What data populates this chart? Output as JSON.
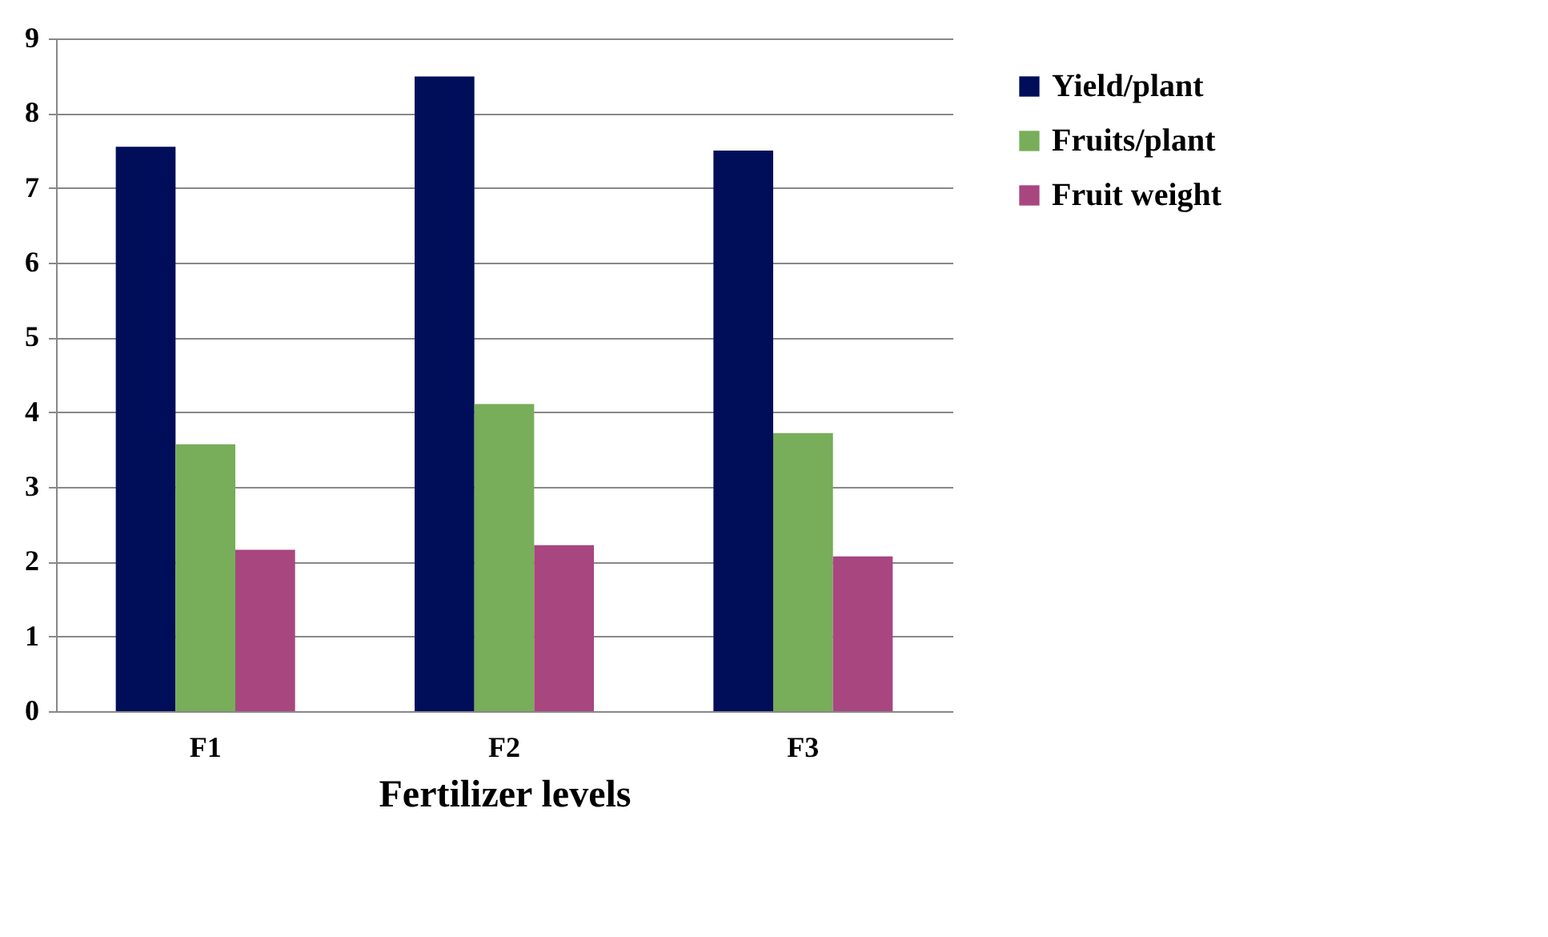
{
  "chart_data": {
    "type": "bar",
    "xlabel": "Fertilizer levels",
    "categories": [
      "F1",
      "F2",
      "F3"
    ],
    "series": [
      {
        "name": "Yield/plant",
        "color": "#000e5a",
        "values": [
          7.55,
          8.49,
          7.5
        ]
      },
      {
        "name": "Fruits/plant",
        "color": "#78ad5a",
        "values": [
          3.57,
          4.11,
          3.72
        ]
      },
      {
        "name": "Fruit weight",
        "color": "#a8467f",
        "values": [
          2.16,
          2.22,
          2.07
        ]
      }
    ],
    "ylim": [
      0,
      9
    ],
    "yticks": [
      0,
      1,
      2,
      3,
      4,
      5,
      6,
      7,
      8,
      9
    ],
    "grid": "y",
    "legend": "right"
  }
}
